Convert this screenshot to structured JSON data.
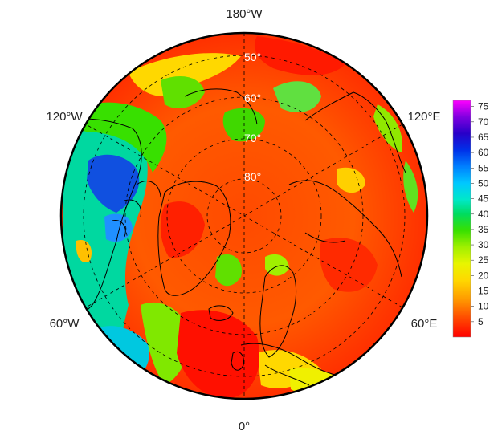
{
  "map": {
    "projection": "north-polar-stereographic",
    "outer_latitude": 40,
    "longitude_labels": [
      {
        "text": "180°W",
        "lon": 180
      },
      {
        "text": "120°E",
        "lon": 120
      },
      {
        "text": "60°E",
        "lon": 60
      },
      {
        "text": "0°",
        "lon": 0
      },
      {
        "text": "60°W",
        "lon": -60
      },
      {
        "text": "120°W",
        "lon": -120
      }
    ],
    "latitude_labels": [
      {
        "text": "50°",
        "lat": 50
      },
      {
        "text": "60°",
        "lat": 60
      },
      {
        "text": "70°",
        "lat": 70
      },
      {
        "text": "80°",
        "lat": 80
      }
    ],
    "graticule": {
      "meridians_deg": [
        0,
        60,
        120,
        180,
        240,
        300
      ],
      "parallels_deg": [
        50,
        60,
        70,
        80
      ],
      "style": "dashed"
    }
  },
  "colorbar": {
    "ticks": [
      "75",
      "70",
      "65",
      "60",
      "55",
      "50",
      "45",
      "40",
      "35",
      "30",
      "25",
      "20",
      "15",
      "10",
      "5"
    ],
    "min": 0,
    "max": 77,
    "colors": [
      "#ff0000",
      "#ff4a00",
      "#ff9a00",
      "#ffd800",
      "#e8f500",
      "#a0f000",
      "#38e000",
      "#00dc60",
      "#00e8c8",
      "#00c8ff",
      "#0080ff",
      "#0030e8",
      "#2800c8",
      "#8000e0",
      "#ff00ff"
    ]
  }
}
